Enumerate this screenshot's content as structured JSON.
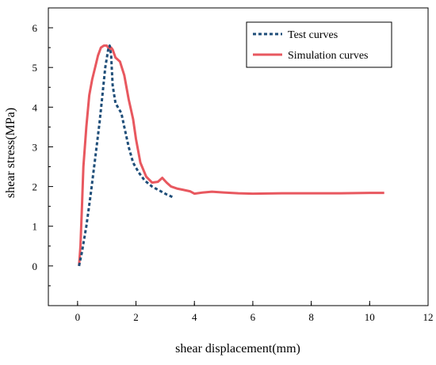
{
  "chart_data": {
    "type": "line",
    "title": "",
    "xlabel": "shear displacement(mm)",
    "ylabel": "shear stress(MPa)",
    "xlim": [
      -1,
      12
    ],
    "ylim": [
      -1,
      6.5
    ],
    "xticks": [
      0,
      2,
      4,
      6,
      8,
      10,
      12
    ],
    "yticks": [
      0,
      1,
      2,
      3,
      4,
      5,
      6
    ],
    "grid": false,
    "legend_position": "top-right",
    "series": [
      {
        "name": "Test curves",
        "color": "#1F4E79",
        "style": "dotted",
        "x": [
          0.05,
          0.15,
          0.3,
          0.45,
          0.6,
          0.75,
          0.85,
          0.95,
          1.05,
          1.1,
          1.15,
          1.2,
          1.3,
          1.5,
          1.6,
          1.75,
          1.9,
          2.1,
          2.3,
          2.55,
          2.8,
          3.05,
          3.3
        ],
        "y": [
          0.0,
          0.35,
          1.0,
          1.8,
          2.7,
          3.6,
          4.3,
          5.0,
          5.45,
          5.55,
          5.3,
          4.55,
          4.1,
          3.85,
          3.5,
          3.0,
          2.6,
          2.35,
          2.15,
          2.0,
          1.9,
          1.8,
          1.72
        ]
      },
      {
        "name": "Simulation curves",
        "color": "#E8585F",
        "style": "solid",
        "x": [
          0.05,
          0.1,
          0.15,
          0.2,
          0.3,
          0.4,
          0.5,
          0.6,
          0.7,
          0.8,
          0.9,
          1.0,
          1.05,
          1.1,
          1.15,
          1.2,
          1.3,
          1.45,
          1.6,
          1.75,
          1.9,
          2.0,
          2.15,
          2.35,
          2.55,
          2.75,
          2.9,
          3.05,
          3.2,
          3.4,
          3.6,
          3.85,
          4.0,
          4.3,
          4.6,
          5.0,
          5.5,
          6.0,
          7.0,
          8.0,
          9.0,
          10.0,
          10.5
        ],
        "y": [
          0.0,
          0.5,
          1.5,
          2.5,
          3.5,
          4.3,
          4.7,
          5.0,
          5.3,
          5.5,
          5.55,
          5.55,
          5.5,
          5.45,
          5.5,
          5.45,
          5.25,
          5.15,
          4.8,
          4.2,
          3.7,
          3.2,
          2.6,
          2.25,
          2.1,
          2.12,
          2.22,
          2.1,
          2.0,
          1.95,
          1.92,
          1.88,
          1.82,
          1.85,
          1.87,
          1.85,
          1.83,
          1.82,
          1.83,
          1.83,
          1.83,
          1.84,
          1.84
        ]
      }
    ]
  }
}
